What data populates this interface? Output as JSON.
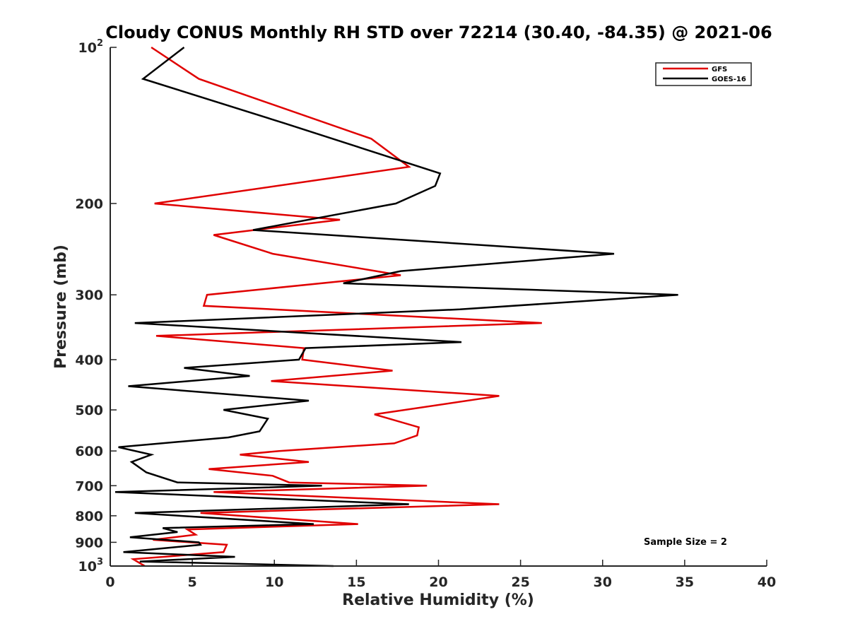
{
  "chart_data": {
    "type": "line",
    "title": "Cloudy CONUS Monthly RH STD over 72214 (30.40, -84.35) @ 2021-06",
    "xlabel": "Relative Humidity (%)",
    "ylabel": "Pressure (mb)",
    "xlim": [
      0,
      40
    ],
    "ylim": [
      100,
      1000
    ],
    "yscale": "log",
    "y_reversed": true,
    "xticks": [
      0,
      5,
      10,
      15,
      20,
      25,
      30,
      35,
      40
    ],
    "xtick_labels": [
      "0",
      "5",
      "10",
      "15",
      "20",
      "25",
      "30",
      "35",
      "40"
    ],
    "yticks": [
      100,
      200,
      300,
      400,
      500,
      600,
      700,
      800,
      900,
      1000
    ],
    "ytick_labels": [
      {
        "base": "10",
        "exp": "2"
      },
      {
        "base": "200",
        "exp": ""
      },
      {
        "base": "300",
        "exp": ""
      },
      {
        "base": "400",
        "exp": ""
      },
      {
        "base": "500",
        "exp": ""
      },
      {
        "base": "600",
        "exp": ""
      },
      {
        "base": "700",
        "exp": ""
      },
      {
        "base": "800",
        "exp": ""
      },
      {
        "base": "900",
        "exp": ""
      },
      {
        "base": "10",
        "exp": "3"
      }
    ],
    "legend_position": "top-right",
    "annotation": "Sample Size = 2",
    "series": [
      {
        "name": "GFS",
        "color": "#e00000",
        "x": [
          2.5,
          5.4,
          15.9,
          18.2,
          2.7,
          14.0,
          6.3,
          9.9,
          17.7,
          5.9,
          5.7,
          26.3,
          2.8,
          11.8,
          11.7,
          17.2,
          9.8,
          23.7,
          16.1,
          18.8,
          18.7,
          17.3,
          10.3,
          7.9,
          12.1,
          6.0,
          9.9,
          10.9,
          19.3,
          6.3,
          23.7,
          5.5,
          15.1,
          4.7,
          5.2,
          2.6,
          7.1,
          6.9,
          1.4,
          2.1
        ],
        "y": [
          100,
          115,
          150,
          170,
          200,
          215,
          230,
          250,
          275,
          300,
          315,
          340,
          360,
          380,
          400,
          420,
          440,
          470,
          510,
          540,
          560,
          580,
          600,
          610,
          630,
          650,
          670,
          690,
          700,
          720,
          760,
          790,
          830,
          850,
          870,
          890,
          910,
          940,
          970,
          1000
        ]
      },
      {
        "name": "GOES-16",
        "color": "#000000",
        "x": [
          4.5,
          2.0,
          10.6,
          20.1,
          19.8,
          17.4,
          8.7,
          30.7,
          17.7,
          14.2,
          34.6,
          21.3,
          1.5,
          21.4,
          11.9,
          11.5,
          4.5,
          8.5,
          1.1,
          12.1,
          6.9,
          9.6,
          9.1,
          7.2,
          0.5,
          2.5,
          1.3,
          2.2,
          4.1,
          12.9,
          0.3,
          18.2,
          1.5,
          12.4,
          3.2,
          4.1,
          1.2,
          5.4,
          5.5,
          0.8,
          7.6,
          1.8,
          13.6
        ],
        "y": [
          100,
          115,
          140,
          175,
          185,
          200,
          225,
          250,
          270,
          285,
          300,
          320,
          340,
          370,
          380,
          400,
          415,
          430,
          450,
          480,
          500,
          520,
          550,
          565,
          590,
          610,
          630,
          660,
          690,
          700,
          720,
          760,
          790,
          830,
          845,
          860,
          880,
          900,
          910,
          940,
          960,
          980,
          1000
        ]
      }
    ]
  }
}
